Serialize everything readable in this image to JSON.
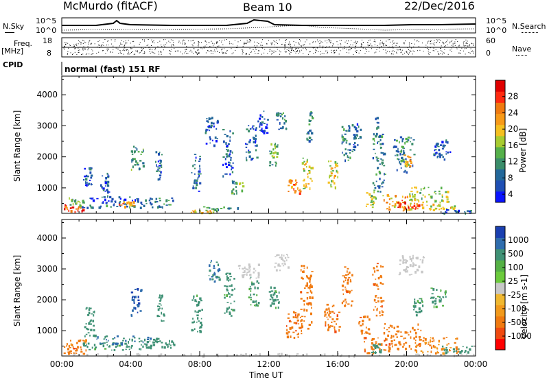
{
  "header": {
    "station": "McMurdo (fitACF)",
    "beam": "Beam 10",
    "date": "22/Dec/2016"
  },
  "summary_labels": {
    "nsky": "N.Sky",
    "nsearch": "N.Search",
    "freq_top": "Freq.",
    "freq_unit": "[MHz]",
    "nave": "Nave",
    "cpid": "CPID",
    "mode": "normal (fast) 151 RF"
  },
  "summary_ticks": {
    "noise_left_top": "10^5",
    "noise_left_bottom": "10^0",
    "noise_right_top": "10^5",
    "noise_right_bottom": "10^0",
    "freq_left_top": "18",
    "freq_left_bottom": "8",
    "nave_right_top": "60",
    "nave_right_bottom": "0"
  },
  "colors": {
    "power": [
      "#0a14ff",
      "#1f4fb4",
      "#23689a",
      "#3a8d6a",
      "#55b04a",
      "#a8cc30",
      "#f5c020",
      "#f79a18",
      "#f07a10",
      "#ff2a10",
      "#e00000"
    ],
    "velocity": [
      "#1a3fb0",
      "#2f6dad",
      "#3f9175",
      "#55b145",
      "#6ccb3c",
      "#c8c8c8",
      "#f0b830",
      "#f29a1c",
      "#f07a10",
      "#f04a10",
      "#ff0000"
    ]
  },
  "chart_data": [
    {
      "type": "heatmap",
      "title": "Power",
      "ylabel": "Slant Range [km]",
      "ylim": [
        180,
        4600
      ],
      "yticks": [
        "1000",
        "2000",
        "3000",
        "4000"
      ],
      "xlim": [
        0,
        24
      ],
      "xticks": [
        "00:00",
        "04:00",
        "08:00",
        "12:00",
        "16:00",
        "20:00",
        "00:00"
      ],
      "colorbar": {
        "label": "Power [dB]",
        "ticks": [
          "4",
          "8",
          "12",
          "16",
          "20",
          "24",
          "28"
        ]
      },
      "patches": [
        {
          "t": 0.1,
          "dt": 1.2,
          "r": 240,
          "dr": 250,
          "v": 28
        },
        {
          "t": 0.3,
          "dt": 1.0,
          "r": 450,
          "dr": 250,
          "v": 14
        },
        {
          "t": 1.0,
          "dt": 3.8,
          "r": 380,
          "dr": 180,
          "v": 10
        },
        {
          "t": 1.5,
          "dt": 3.0,
          "r": 520,
          "dr": 220,
          "v": 6
        },
        {
          "t": 3.3,
          "dt": 0.9,
          "r": 420,
          "dr": 160,
          "v": 22
        },
        {
          "t": 4.8,
          "dt": 1.8,
          "r": 400,
          "dr": 300,
          "v": 10
        },
        {
          "t": 7.0,
          "dt": 2.0,
          "r": 200,
          "dr": 100,
          "v": 20
        },
        {
          "t": 8.0,
          "dt": 2.2,
          "r": 330,
          "dr": 80,
          "v": 12
        },
        {
          "t": 1.2,
          "dt": 0.5,
          "r": 1100,
          "dr": 600,
          "v": 6
        },
        {
          "t": 2.2,
          "dt": 0.5,
          "r": 700,
          "dr": 800,
          "v": 8
        },
        {
          "t": 4.0,
          "dt": 0.7,
          "r": 1600,
          "dr": 800,
          "v": 12
        },
        {
          "t": 5.4,
          "dt": 0.4,
          "r": 1300,
          "dr": 900,
          "v": 8
        },
        {
          "t": 7.5,
          "dt": 0.5,
          "r": 900,
          "dr": 1200,
          "v": 8
        },
        {
          "t": 8.3,
          "dt": 0.7,
          "r": 2400,
          "dr": 900,
          "v": 6
        },
        {
          "t": 9.3,
          "dt": 0.6,
          "r": 1400,
          "dr": 1600,
          "v": 8
        },
        {
          "t": 9.8,
          "dt": 0.7,
          "r": 800,
          "dr": 450,
          "v": 14
        },
        {
          "t": 10.6,
          "dt": 0.7,
          "r": 1900,
          "dr": 1200,
          "v": 8
        },
        {
          "t": 11.3,
          "dt": 0.6,
          "r": 2800,
          "dr": 700,
          "v": 6
        },
        {
          "t": 12.0,
          "dt": 0.5,
          "r": 1700,
          "dr": 800,
          "v": 14
        },
        {
          "t": 12.4,
          "dt": 0.6,
          "r": 2900,
          "dr": 600,
          "v": 10
        },
        {
          "t": 13.1,
          "dt": 0.7,
          "r": 850,
          "dr": 450,
          "v": 24
        },
        {
          "t": 13.9,
          "dt": 0.6,
          "r": 1000,
          "dr": 1000,
          "v": 18
        },
        {
          "t": 14.1,
          "dt": 0.4,
          "r": 2500,
          "dr": 1000,
          "v": 10
        },
        {
          "t": 15.4,
          "dt": 0.6,
          "r": 1000,
          "dr": 900,
          "v": 18
        },
        {
          "t": 16.2,
          "dt": 0.5,
          "r": 1900,
          "dr": 1200,
          "v": 10
        },
        {
          "t": 16.8,
          "dt": 0.5,
          "r": 2200,
          "dr": 900,
          "v": 8
        },
        {
          "t": 17.6,
          "dt": 0.6,
          "r": 400,
          "dr": 500,
          "v": 16
        },
        {
          "t": 18.0,
          "dt": 0.7,
          "r": 900,
          "dr": 2400,
          "v": 10
        },
        {
          "t": 18.6,
          "dt": 1.8,
          "r": 300,
          "dr": 500,
          "v": 22
        },
        {
          "t": 19.4,
          "dt": 1.3,
          "r": 280,
          "dr": 300,
          "v": 28
        },
        {
          "t": 20.0,
          "dt": 2.4,
          "r": 550,
          "dr": 500,
          "v": 16
        },
        {
          "t": 19.2,
          "dt": 1.2,
          "r": 1500,
          "dr": 1200,
          "v": 10
        },
        {
          "t": 20.8,
          "dt": 2.0,
          "r": 300,
          "dr": 200,
          "v": 20
        },
        {
          "t": 22.0,
          "dt": 1.8,
          "r": 200,
          "dr": 120,
          "v": 8
        },
        {
          "t": 19.8,
          "dt": 0.5,
          "r": 1700,
          "dr": 400,
          "v": 20
        },
        {
          "t": 21.5,
          "dt": 1.0,
          "r": 1900,
          "dr": 700,
          "v": 6
        }
      ]
    },
    {
      "type": "heatmap",
      "title": "Velocity",
      "ylabel": "Slant Range [km]",
      "ylim": [
        180,
        4600
      ],
      "yticks": [
        "1000",
        "2000",
        "3000",
        "4000"
      ],
      "xlim": [
        0,
        24
      ],
      "xticks": [
        "00:00",
        "04:00",
        "08:00",
        "12:00",
        "16:00",
        "20:00",
        "00:00"
      ],
      "xlabel": "Time UT",
      "colorbar": {
        "label": "Velocity [m s-1]",
        "ticks": [
          "1000",
          "500",
          "100",
          "25",
          "-25",
          "-100",
          "-500",
          "-1000"
        ]
      },
      "patches": [
        {
          "t": 0.1,
          "dt": 1.3,
          "r": 250,
          "dr": 250,
          "v": -300
        },
        {
          "t": 0.2,
          "dt": 1.2,
          "r": 480,
          "dr": 250,
          "v": -200
        },
        {
          "t": 1.2,
          "dt": 3.8,
          "r": 380,
          "dr": 250,
          "v": 150
        },
        {
          "t": 2.0,
          "dt": 3.5,
          "r": 600,
          "dr": 250,
          "v": 300
        },
        {
          "t": 4.5,
          "dt": 2.0,
          "r": 450,
          "dr": 350,
          "v": 200
        },
        {
          "t": 0.0,
          "dt": 24.0,
          "r": 190,
          "dr": 90,
          "v": 0
        },
        {
          "t": 4.0,
          "dt": 0.6,
          "r": 1500,
          "dr": 900,
          "v": 800
        },
        {
          "t": 1.3,
          "dt": 0.6,
          "r": 800,
          "dr": 1000,
          "v": 200
        },
        {
          "t": 5.5,
          "dt": 0.4,
          "r": 1300,
          "dr": 900,
          "v": 200
        },
        {
          "t": 7.5,
          "dt": 0.6,
          "r": 900,
          "dr": 1300,
          "v": 150
        },
        {
          "t": 8.5,
          "dt": 0.6,
          "r": 2500,
          "dr": 800,
          "v": 300
        },
        {
          "t": 9.4,
          "dt": 0.6,
          "r": 1500,
          "dr": 1400,
          "v": 150
        },
        {
          "t": 10.2,
          "dt": 1.2,
          "r": 2700,
          "dr": 500,
          "v": 0
        },
        {
          "t": 10.8,
          "dt": 0.6,
          "r": 1800,
          "dr": 1000,
          "v": 120
        },
        {
          "t": 12.0,
          "dt": 0.6,
          "r": 1700,
          "dr": 800,
          "v": 150
        },
        {
          "t": 12.3,
          "dt": 0.8,
          "r": 2900,
          "dr": 600,
          "v": 0
        },
        {
          "t": 13.0,
          "dt": 0.9,
          "r": 800,
          "dr": 900,
          "v": -300
        },
        {
          "t": 13.8,
          "dt": 0.7,
          "r": 1000,
          "dr": 2200,
          "v": -300
        },
        {
          "t": 15.2,
          "dt": 0.9,
          "r": 900,
          "dr": 1000,
          "v": -300
        },
        {
          "t": 16.2,
          "dt": 0.6,
          "r": 1800,
          "dr": 1300,
          "v": -300
        },
        {
          "t": 17.2,
          "dt": 0.6,
          "r": 900,
          "dr": 600,
          "v": -300
        },
        {
          "t": 17.5,
          "dt": 1.0,
          "r": 300,
          "dr": 500,
          "v": -300
        },
        {
          "t": 18.0,
          "dt": 0.6,
          "r": 1500,
          "dr": 1700,
          "v": -300
        },
        {
          "t": 18.6,
          "dt": 2.2,
          "r": 350,
          "dr": 900,
          "v": -300
        },
        {
          "t": 20.5,
          "dt": 2.5,
          "r": 300,
          "dr": 500,
          "v": -150
        },
        {
          "t": 19.5,
          "dt": 1.5,
          "r": 2800,
          "dr": 700,
          "v": 0
        },
        {
          "t": 20.3,
          "dt": 0.6,
          "r": 1500,
          "dr": 600,
          "v": 120
        },
        {
          "t": 21.3,
          "dt": 1.0,
          "r": 1800,
          "dr": 600,
          "v": 100
        },
        {
          "t": 22.0,
          "dt": 1.8,
          "r": 320,
          "dr": 200,
          "v": 200
        },
        {
          "t": 17.9,
          "dt": 0.6,
          "r": 300,
          "dr": 300,
          "v": 200
        }
      ]
    }
  ]
}
